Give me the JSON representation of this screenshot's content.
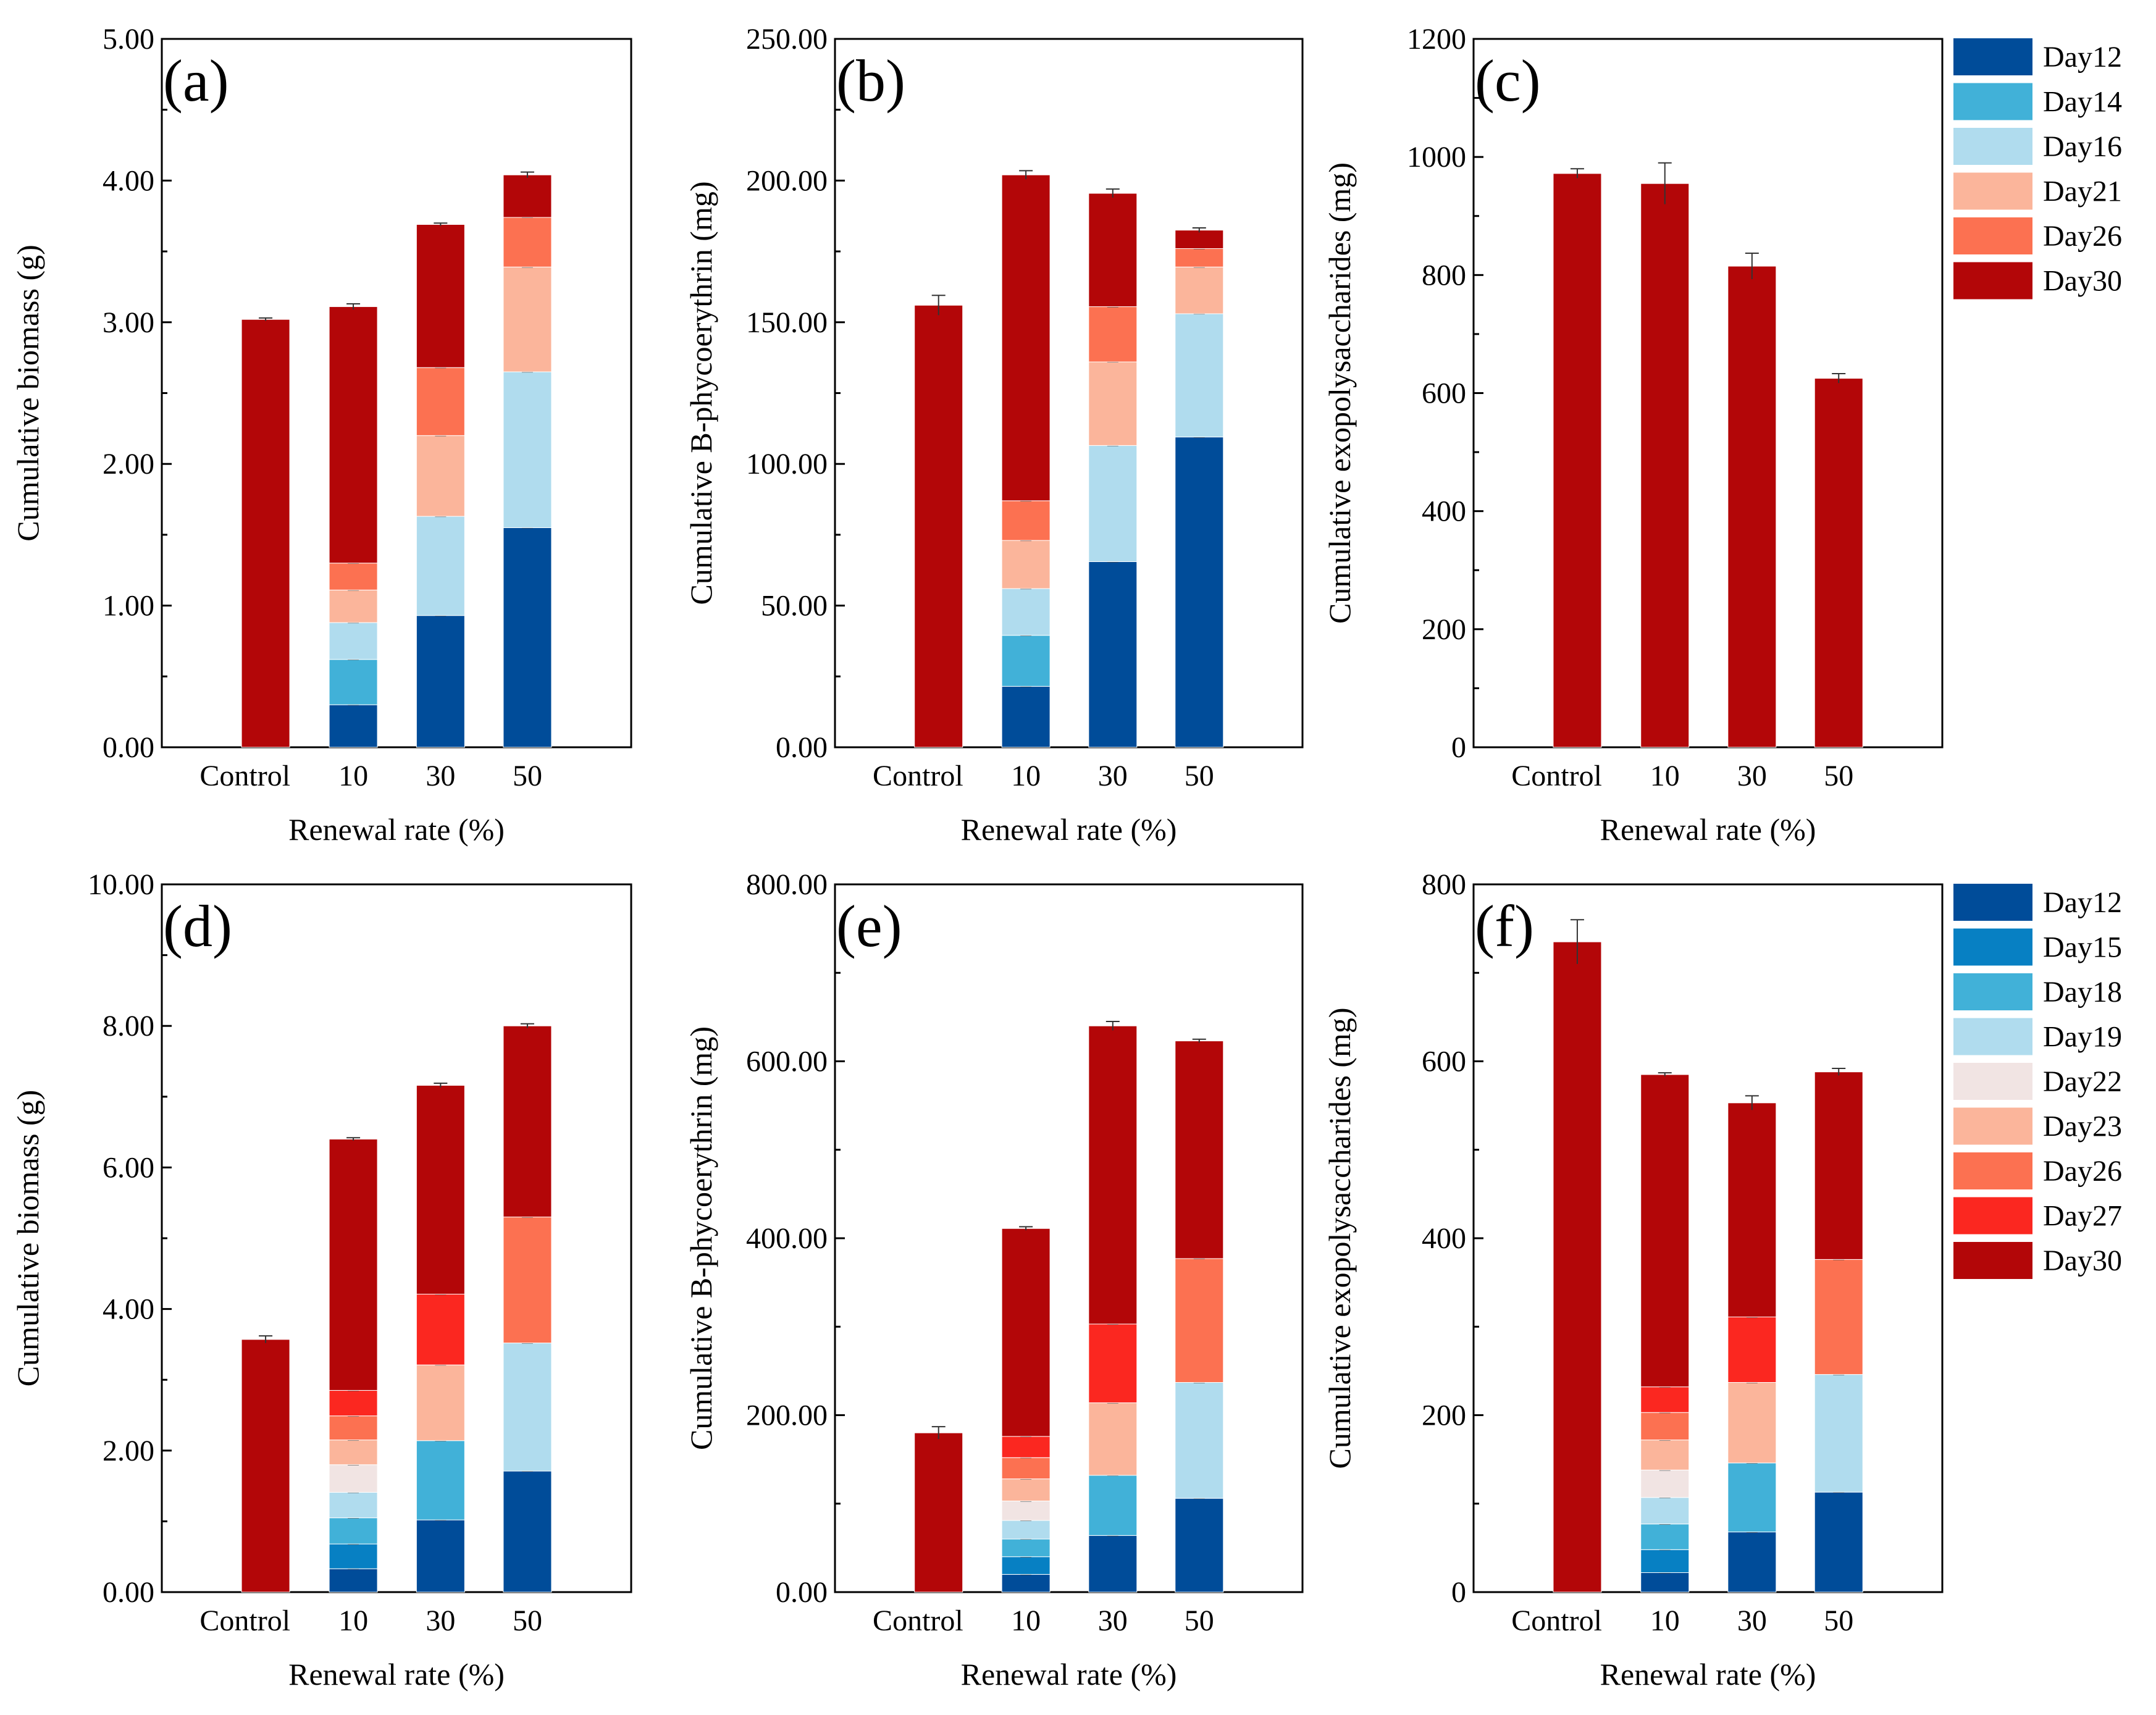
{
  "legend_top": {
    "items": [
      {
        "label": "Day12",
        "color": "#004c99"
      },
      {
        "label": "Day14",
        "color": "#41b1d8"
      },
      {
        "label": "Day16",
        "color": "#b0dcee"
      },
      {
        "label": "Day21",
        "color": "#fbb59b"
      },
      {
        "label": "Day26",
        "color": "#fc7151"
      },
      {
        "label": "Day30",
        "color": "#b30608"
      }
    ]
  },
  "legend_bottom": {
    "items": [
      {
        "label": "Day12",
        "color": "#004c99"
      },
      {
        "label": "Day15",
        "color": "#0780c3"
      },
      {
        "label": "Day18",
        "color": "#41b1d8"
      },
      {
        "label": "Day19",
        "color": "#b0dcee"
      },
      {
        "label": "Day22",
        "color": "#f1e4e3"
      },
      {
        "label": "Day23",
        "color": "#fbb59b"
      },
      {
        "label": "Day26",
        "color": "#fc7151"
      },
      {
        "label": "Day27",
        "color": "#fb2720"
      },
      {
        "label": "Day30",
        "color": "#b30608"
      }
    ]
  },
  "chart_data": [
    {
      "panel": "(a)",
      "type": "bar",
      "stacked": true,
      "xlabel": "Renewal rate (%)",
      "ylabel": "Cumulative biomass (g)",
      "ylim": [
        0,
        5
      ],
      "yticks": [
        "0.00",
        "1.00",
        "2.00",
        "3.00",
        "4.00",
        "5.00"
      ],
      "categories": [
        "Control",
        "10",
        "30",
        "50"
      ],
      "series": [
        {
          "name": "Day12",
          "color": "#004c99",
          "values": [
            0,
            0.3,
            0.93,
            1.55
          ]
        },
        {
          "name": "Day14",
          "color": "#41b1d8",
          "values": [
            0,
            0.32,
            0,
            0
          ]
        },
        {
          "name": "Day16",
          "color": "#b0dcee",
          "values": [
            0,
            0.26,
            0.7,
            1.1
          ]
        },
        {
          "name": "Day21",
          "color": "#fbb59b",
          "values": [
            0,
            0.23,
            0.57,
            0.74
          ]
        },
        {
          "name": "Day26",
          "color": "#fc7151",
          "values": [
            0,
            0.19,
            0.48,
            0.35
          ]
        },
        {
          "name": "Day30",
          "color": "#b30608",
          "values": [
            3.02,
            1.81,
            1.01,
            0.3
          ]
        }
      ],
      "totals": [
        3.02,
        3.11,
        3.69,
        4.04
      ],
      "errors": [
        0.01,
        0.02,
        0.01,
        0.02
      ]
    },
    {
      "panel": "(b)",
      "type": "bar",
      "stacked": true,
      "xlabel": "Renewal rate (%)",
      "ylabel": "Cumulative B-phycoerythrin (mg)",
      "ylim": [
        0,
        250
      ],
      "yticks": [
        "0.00",
        "50.00",
        "100.00",
        "150.00",
        "200.00",
        "250.00"
      ],
      "categories": [
        "Control",
        "10",
        "30",
        "50"
      ],
      "series": [
        {
          "name": "Day12",
          "color": "#004c99",
          "values": [
            0,
            21.5,
            65.5,
            109.5
          ]
        },
        {
          "name": "Day14",
          "color": "#41b1d8",
          "values": [
            0,
            18.0,
            0,
            0
          ]
        },
        {
          "name": "Day16",
          "color": "#b0dcee",
          "values": [
            0,
            16.5,
            41.0,
            43.5
          ]
        },
        {
          "name": "Day21",
          "color": "#fbb59b",
          "values": [
            0,
            17.0,
            29.5,
            16.5
          ]
        },
        {
          "name": "Day26",
          "color": "#fc7151",
          "values": [
            0,
            14.0,
            19.5,
            6.5
          ]
        },
        {
          "name": "Day30",
          "color": "#b30608",
          "values": [
            156.0,
            115.0,
            40.0,
            6.5
          ]
        }
      ],
      "totals": [
        156.0,
        202.0,
        195.5,
        182.5
      ],
      "errors": [
        3.5,
        1.5,
        1.5,
        0.8
      ]
    },
    {
      "panel": "(c)",
      "type": "bar",
      "stacked": true,
      "xlabel": "Renewal rate (%)",
      "ylabel": "Cumulative exopolysaccharides (mg)",
      "ylim": [
        0,
        1200
      ],
      "yticks": [
        "0",
        "200",
        "400",
        "600",
        "800",
        "1000",
        "1200"
      ],
      "categories": [
        "Control",
        "10",
        "30",
        "50"
      ],
      "series": [
        {
          "name": "Day30",
          "color": "#b30608",
          "values": [
            972,
            955,
            815,
            625
          ]
        }
      ],
      "totals": [
        972,
        955,
        815,
        625
      ],
      "errors": [
        8,
        35,
        22,
        8
      ]
    },
    {
      "panel": "(d)",
      "type": "bar",
      "stacked": true,
      "xlabel": "Renewal rate (%)",
      "ylabel": "Cumulative biomass (g)",
      "ylim": [
        0,
        10
      ],
      "yticks": [
        "0.00",
        "2.00",
        "4.00",
        "6.00",
        "8.00",
        "10.00"
      ],
      "categories": [
        "Control",
        "10",
        "30",
        "50"
      ],
      "series": [
        {
          "name": "Day12",
          "color": "#004c99",
          "values": [
            0,
            0.33,
            1.02,
            1.71
          ]
        },
        {
          "name": "Day15",
          "color": "#0780c3",
          "values": [
            0,
            0.35,
            0,
            0
          ]
        },
        {
          "name": "Day18",
          "color": "#41b1d8",
          "values": [
            0,
            0.37,
            1.12,
            0
          ]
        },
        {
          "name": "Day19",
          "color": "#b0dcee",
          "values": [
            0,
            0.36,
            0,
            1.81
          ]
        },
        {
          "name": "Day22",
          "color": "#f1e4e3",
          "values": [
            0,
            0.39,
            0,
            0
          ]
        },
        {
          "name": "Day23",
          "color": "#fbb59b",
          "values": [
            0,
            0.35,
            1.07,
            0
          ]
        },
        {
          "name": "Day26",
          "color": "#fc7151",
          "values": [
            0,
            0.34,
            0,
            1.78
          ]
        },
        {
          "name": "Day27",
          "color": "#fb2720",
          "values": [
            0,
            0.36,
            1.0,
            0
          ]
        },
        {
          "name": "Day30",
          "color": "#b30608",
          "values": [
            3.57,
            3.55,
            2.95,
            2.7
          ]
        }
      ],
      "totals": [
        3.57,
        6.4,
        7.16,
        8.0
      ],
      "errors": [
        0.05,
        0.02,
        0.03,
        0.03
      ]
    },
    {
      "panel": "(e)",
      "type": "bar",
      "stacked": true,
      "xlabel": "Renewal rate (%)",
      "ylabel": "Cumulative B-phycoerythrin (mg)",
      "ylim": [
        0,
        800
      ],
      "yticks": [
        "0.00",
        "200.00",
        "400.00",
        "600.00",
        "800.00"
      ],
      "categories": [
        "Control",
        "10",
        "30",
        "50"
      ],
      "series": [
        {
          "name": "Day12",
          "color": "#004c99",
          "values": [
            0,
            20,
            64,
            106
          ]
        },
        {
          "name": "Day15",
          "color": "#0780c3",
          "values": [
            0,
            20,
            0,
            0
          ]
        },
        {
          "name": "Day18",
          "color": "#41b1d8",
          "values": [
            0,
            20,
            68,
            0
          ]
        },
        {
          "name": "Day19",
          "color": "#b0dcee",
          "values": [
            0,
            21,
            0,
            131
          ]
        },
        {
          "name": "Day22",
          "color": "#f1e4e3",
          "values": [
            0,
            22,
            0,
            0
          ]
        },
        {
          "name": "Day23",
          "color": "#fbb59b",
          "values": [
            0,
            25,
            82,
            0
          ]
        },
        {
          "name": "Day26",
          "color": "#fc7151",
          "values": [
            0,
            24,
            0,
            140
          ]
        },
        {
          "name": "Day27",
          "color": "#fb2720",
          "values": [
            0,
            24,
            89,
            0
          ]
        },
        {
          "name": "Day30",
          "color": "#b30608",
          "values": [
            180,
            235,
            337,
            246
          ]
        }
      ],
      "totals": [
        180,
        411,
        640,
        623
      ],
      "errors": [
        7,
        2,
        5,
        2
      ]
    },
    {
      "panel": "(f)",
      "type": "bar",
      "stacked": true,
      "xlabel": "Renewal rate (%)",
      "ylabel": "Cumulative exopolysaccharides (mg)",
      "ylim": [
        0,
        800
      ],
      "yticks": [
        "0",
        "200",
        "400",
        "600",
        "800"
      ],
      "categories": [
        "Control",
        "10",
        "30",
        "50"
      ],
      "series": [
        {
          "name": "Day12",
          "color": "#004c99",
          "values": [
            0,
            22,
            68,
            113
          ]
        },
        {
          "name": "Day15",
          "color": "#0780c3",
          "values": [
            0,
            26,
            0,
            0
          ]
        },
        {
          "name": "Day18",
          "color": "#41b1d8",
          "values": [
            0,
            29,
            78,
            0
          ]
        },
        {
          "name": "Day19",
          "color": "#b0dcee",
          "values": [
            0,
            30,
            0,
            133
          ]
        },
        {
          "name": "Day22",
          "color": "#f1e4e3",
          "values": [
            0,
            31,
            0,
            0
          ]
        },
        {
          "name": "Day23",
          "color": "#fbb59b",
          "values": [
            0,
            34,
            91,
            0
          ]
        },
        {
          "name": "Day26",
          "color": "#fc7151",
          "values": [
            0,
            31,
            0,
            130
          ]
        },
        {
          "name": "Day27",
          "color": "#fb2720",
          "values": [
            0,
            29,
            74,
            0
          ]
        },
        {
          "name": "Day30",
          "color": "#b30608",
          "values": [
            735,
            353,
            242,
            212
          ]
        }
      ],
      "totals": [
        735,
        585,
        553,
        588
      ],
      "errors": [
        25,
        2,
        8,
        4
      ]
    }
  ]
}
